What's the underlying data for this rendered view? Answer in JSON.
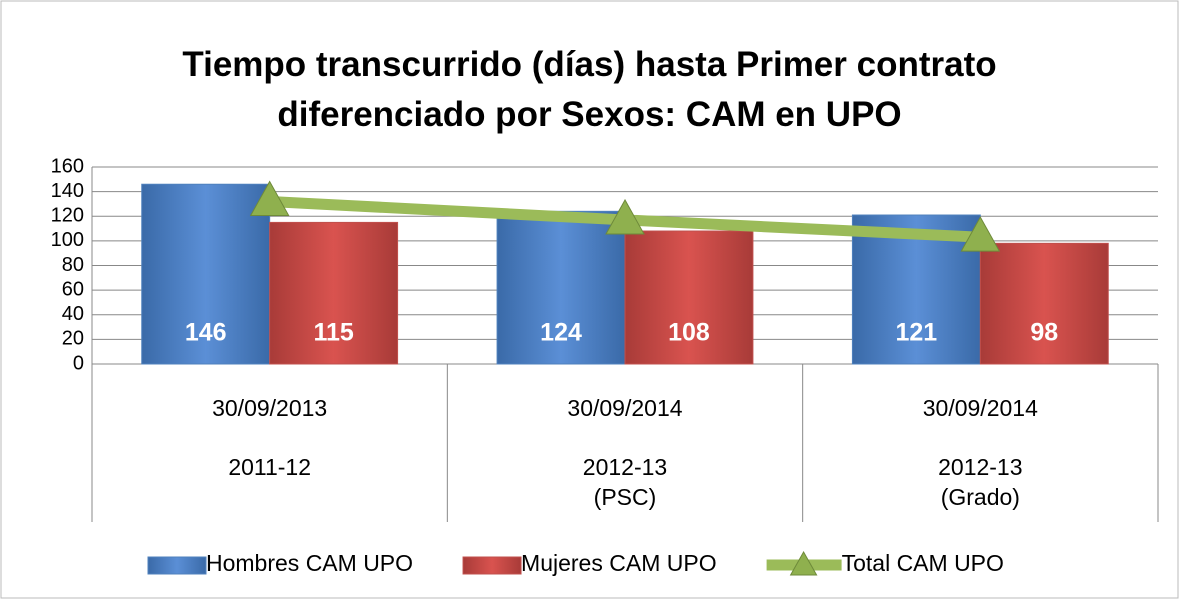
{
  "chart_data": {
    "type": "bar",
    "title": "Tiempo transcurrido (días) hasta Primer contrato\ndiferenciado por  Sexos: CAM en UPO",
    "categories": [
      "30/09/2013",
      "30/09/2014",
      "30/09/2014"
    ],
    "subcategories": [
      "2011-12",
      "2012-13\n(PSC)",
      "2012-13\n(Grado)"
    ],
    "series": [
      {
        "name": "Hombres CAM UPO",
        "color": "#4f81bd",
        "type": "bar",
        "values": [
          146,
          124,
          121
        ]
      },
      {
        "name": "Mujeres CAM UPO",
        "color": "#c0504d",
        "type": "bar",
        "values": [
          115,
          108,
          98
        ]
      },
      {
        "name": "Total CAM UPO",
        "color": "#9bbb59",
        "type": "line",
        "values": [
          132,
          117,
          103
        ]
      }
    ],
    "ylim": [
      0,
      160
    ],
    "yticks": [
      0,
      20,
      40,
      60,
      80,
      100,
      120,
      140,
      160
    ],
    "grid": true,
    "legend": "bottom"
  }
}
